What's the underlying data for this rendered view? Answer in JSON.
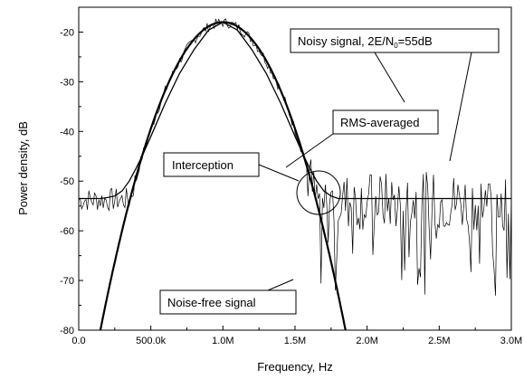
{
  "chart_data": {
    "type": "line",
    "xlabel": "Frequency, Hz",
    "ylabel": "Power density, dB",
    "xlim": [
      0,
      3000000
    ],
    "ylim": [
      -80,
      -15
    ],
    "x_ticks": [
      0,
      500000,
      1000000,
      1500000,
      2000000,
      2500000,
      3000000
    ],
    "x_tick_labels": [
      "0.0",
      "500.0k",
      "1.0M",
      "1.5M",
      "2.0M",
      "2.5M",
      "3.0M"
    ],
    "y_ticks": [
      -80,
      -70,
      -60,
      -50,
      -40,
      -30,
      -20
    ],
    "y_tick_labels": [
      "-80",
      "-70",
      "-60",
      "-50",
      "-40",
      "-30",
      "-20"
    ],
    "grid": false,
    "series": [
      {
        "name": "Noise-free signal",
        "model": "parabola",
        "peak_x": 1000000,
        "peak_y": -18,
        "zero_x": [
          150000,
          1850000
        ],
        "value_at_zero_x": -80
      },
      {
        "name": "RMS-averaged",
        "floor": -53.5,
        "x": [
          0,
          150000,
          200000,
          250000,
          300000,
          350000,
          400000,
          450000,
          500000,
          600000,
          700000,
          800000,
          900000,
          1000000,
          1100000,
          1200000,
          1300000,
          1400000,
          1500000,
          1550000,
          1600000,
          1650000,
          1700000,
          1750000,
          1800000,
          2000000,
          2500000,
          3000000
        ],
        "y": [
          -53.5,
          -53.5,
          -53.3,
          -53,
          -52,
          -50,
          -47.3,
          -44.3,
          -41,
          -34.3,
          -28.3,
          -23.5,
          -19.6,
          -18,
          -19.6,
          -23.5,
          -28.3,
          -34.3,
          -41,
          -44.3,
          -47.3,
          -50,
          -52,
          -53,
          -53.5,
          -53.5,
          -53.5,
          -53.5
        ]
      },
      {
        "name": "Noisy signal, 2E/N₀=55dB",
        "noise_floor": -53.5,
        "noise_spread_db": 8,
        "x_range": [
          0,
          3000000
        ]
      }
    ],
    "annotations": [
      {
        "id": "noisy",
        "text_main": "Noisy signal, 2E/N",
        "text_sub": "0",
        "text_tail": "=55dB"
      },
      {
        "id": "rms",
        "text": "RMS-averaged"
      },
      {
        "id": "interception",
        "text": "Interception"
      },
      {
        "id": "noisefree",
        "text": "Noise-free signal"
      }
    ]
  }
}
